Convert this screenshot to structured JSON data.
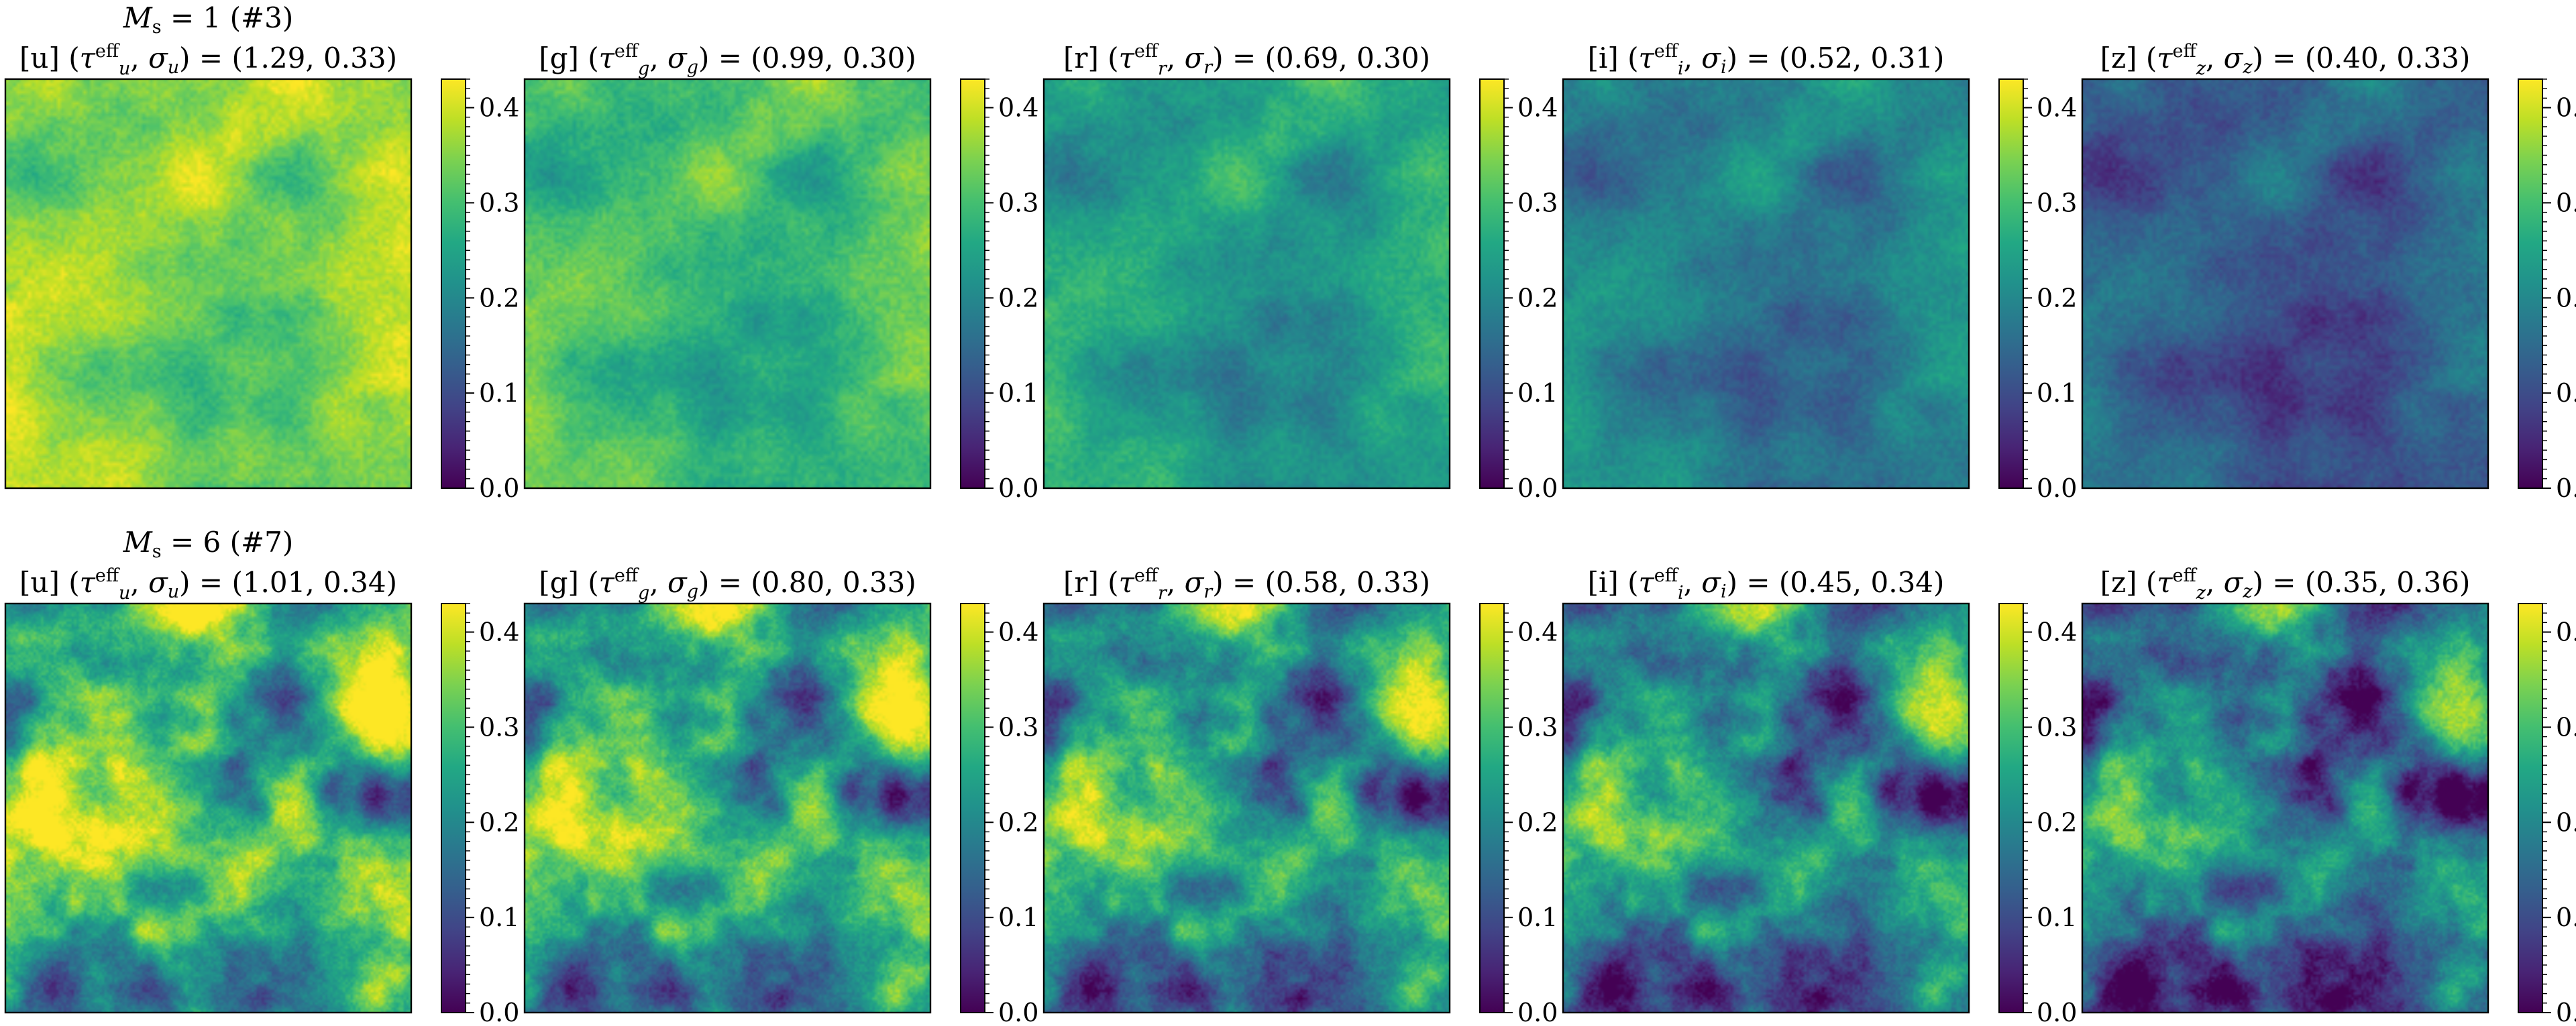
{
  "chart_data": {
    "type": "heatmap",
    "description": "Grid of simulated map panels, 2 rows (mode number) x 5 photometric bands, each with a viridis colorbar",
    "colormap": "viridis",
    "colorbar": {
      "range": [
        0.0,
        0.43
      ],
      "ticks": [
        0.0,
        0.1,
        0.2,
        0.3,
        0.4
      ],
      "tick_labels": [
        "0.0",
        "0.1",
        "0.2",
        "0.3",
        "0.4"
      ]
    },
    "rows": [
      {
        "title_prefix": "M",
        "title_sub": "s",
        "title_rest": " = 1 (#3)",
        "mode": 1,
        "structure": "smooth",
        "panels": [
          {
            "band": "u",
            "band_label": "[u]",
            "tau_eff": 1.29,
            "sigma": 0.33,
            "values_text": " = (1.29,  0.33)"
          },
          {
            "band": "g",
            "band_label": "[g]",
            "tau_eff": 0.99,
            "sigma": 0.3,
            "values_text": " = (0.99,  0.30)"
          },
          {
            "band": "r",
            "band_label": "[r]",
            "tau_eff": 0.69,
            "sigma": 0.3,
            "values_text": " = (0.69,  0.30)"
          },
          {
            "band": "i",
            "band_label": "[i]",
            "tau_eff": 0.52,
            "sigma": 0.31,
            "values_text": " = (0.52,  0.31)"
          },
          {
            "band": "z",
            "band_label": "[z]",
            "tau_eff": 0.4,
            "sigma": 0.33,
            "values_text": " = (0.40,  0.33)"
          }
        ]
      },
      {
        "title_prefix": "M",
        "title_sub": "s",
        "title_rest": " = 6 (#7)",
        "mode": 6,
        "structure": "clumpy",
        "panels": [
          {
            "band": "u",
            "band_label": "[u]",
            "tau_eff": 1.01,
            "sigma": 0.34,
            "values_text": " = (1.01,  0.34)"
          },
          {
            "band": "g",
            "band_label": "[g]",
            "tau_eff": 0.8,
            "sigma": 0.33,
            "values_text": " = (0.80,  0.33)"
          },
          {
            "band": "r",
            "band_label": "[r]",
            "tau_eff": 0.58,
            "sigma": 0.33,
            "values_text": " = (0.58,  0.33)"
          },
          {
            "band": "i",
            "band_label": "[i]",
            "tau_eff": 0.45,
            "sigma": 0.34,
            "values_text": " = (0.45,  0.34)"
          },
          {
            "band": "z",
            "band_label": "[z]",
            "tau_eff": 0.35,
            "sigma": 0.36,
            "values_text": " = (0.35,  0.36)"
          }
        ]
      }
    ],
    "title_symbols": {
      "tau": "τ",
      "eff": "eff",
      "sigma": "σ"
    }
  }
}
